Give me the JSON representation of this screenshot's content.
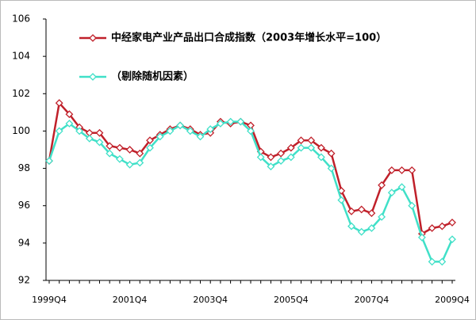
{
  "chart_data": {
    "type": "line",
    "categories": [
      "1999Q4",
      null,
      null,
      null,
      null,
      null,
      null,
      null,
      "2001Q4",
      null,
      null,
      null,
      null,
      null,
      null,
      null,
      "2003Q4",
      null,
      null,
      null,
      null,
      null,
      null,
      null,
      "2005Q4",
      null,
      null,
      null,
      null,
      null,
      null,
      null,
      "2007Q4",
      null,
      null,
      null,
      null,
      null,
      null,
      null,
      "2009Q4"
    ],
    "series": [
      {
        "name": "中经家电产业产品出口合成指数（2003年增长水平=100）",
        "color": "#c0202a",
        "values": [
          98.4,
          101.5,
          100.9,
          100.2,
          99.9,
          99.9,
          99.2,
          99.1,
          99.0,
          98.8,
          99.5,
          99.8,
          100.1,
          100.3,
          100.1,
          99.8,
          99.9,
          100.5,
          100.4,
          100.5,
          100.3,
          98.9,
          98.6,
          98.8,
          99.1,
          99.5,
          99.5,
          99.1,
          98.8,
          96.8,
          95.7,
          95.8,
          95.6,
          97.1,
          97.9,
          97.9,
          97.9,
          94.5,
          94.8,
          94.9,
          95.1
        ]
      },
      {
        "name": "（剔除随机因素）",
        "color": "#40e0c8",
        "values": [
          98.4,
          100.0,
          100.4,
          100.0,
          99.6,
          99.4,
          98.8,
          98.5,
          98.2,
          98.3,
          99.1,
          99.7,
          100.0,
          100.3,
          100.0,
          99.7,
          100.1,
          100.4,
          100.5,
          100.5,
          100.0,
          98.6,
          98.1,
          98.4,
          98.6,
          99.1,
          99.1,
          98.6,
          98.0,
          96.3,
          94.9,
          94.6,
          94.8,
          95.4,
          96.7,
          97.0,
          96.0,
          94.3,
          93.0,
          93.0,
          94.2
        ]
      }
    ],
    "ylim": [
      92,
      106
    ],
    "yticks": [
      92,
      94,
      96,
      98,
      100,
      102,
      104,
      106
    ],
    "grid": false
  }
}
